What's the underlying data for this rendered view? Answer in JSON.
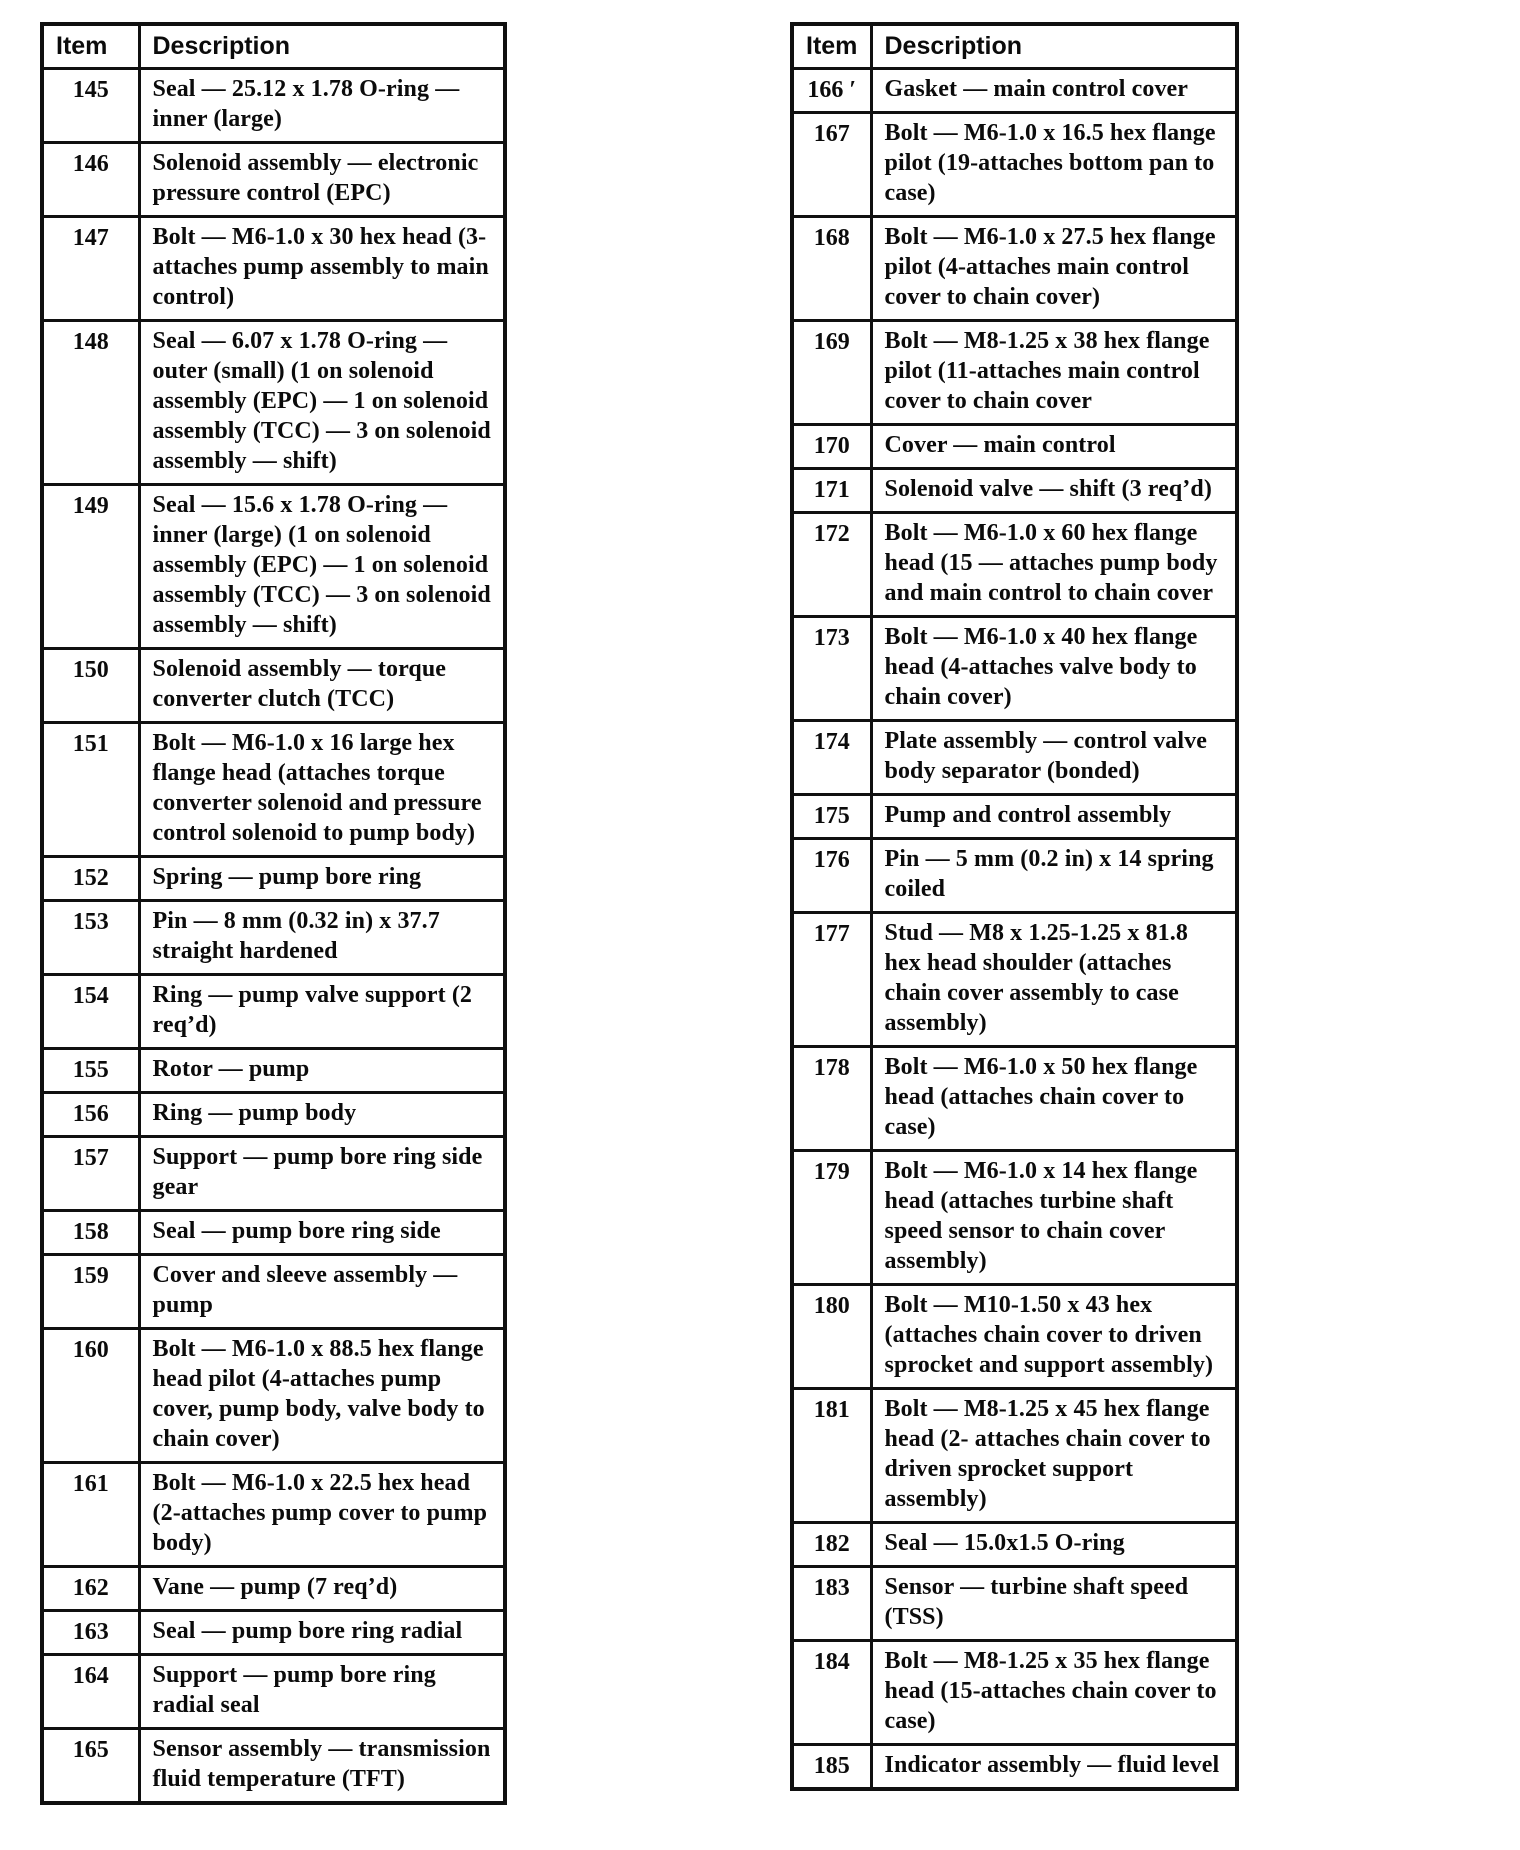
{
  "page": {
    "background": "#ffffff",
    "ink": "#0d0d0d"
  },
  "left_table": {
    "headers": {
      "item": "Item",
      "description": "Description"
    },
    "rows": [
      {
        "item": "145",
        "description": "Seal — 25.12 x 1.78 O-ring — inner (large)"
      },
      {
        "item": "146",
        "description": "Solenoid assembly — electronic pressure control (EPC)"
      },
      {
        "item": "147",
        "description": "Bolt — M6-1.0 x 30 hex head (3-attaches pump assembly to main control)"
      },
      {
        "item": "148",
        "description": "Seal — 6.07 x 1.78 O-ring — outer (small) (1 on solenoid assembly (EPC) — 1 on solenoid assembly (TCC) — 3 on solenoid assembly — shift)"
      },
      {
        "item": "149",
        "description": "Seal — 15.6 x 1.78 O-ring — inner (large) (1 on solenoid assembly (EPC) — 1 on solenoid assembly (TCC) — 3 on solenoid assembly — shift)"
      },
      {
        "item": "150",
        "description": "Solenoid assembly — torque converter clutch (TCC)"
      },
      {
        "item": "151",
        "description": "Bolt — M6-1.0 x 16 large hex flange head (attaches torque converter solenoid and pressure control solenoid to pump body)"
      },
      {
        "item": "152",
        "description": "Spring — pump bore ring"
      },
      {
        "item": "153",
        "description": "Pin — 8 mm (0.32 in) x 37.7 straight hardened"
      },
      {
        "item": "154",
        "description": "Ring — pump valve support (2 req’d)"
      },
      {
        "item": "155",
        "description": "Rotor — pump"
      },
      {
        "item": "156",
        "description": "Ring — pump body"
      },
      {
        "item": "157",
        "description": "Support — pump bore ring side gear"
      },
      {
        "item": "158",
        "description": "Seal — pump bore ring side"
      },
      {
        "item": "159",
        "description": "Cover and sleeve assembly — pump"
      },
      {
        "item": "160",
        "description": "Bolt — M6-1.0 x 88.5 hex flange head pilot (4-attaches pump cover, pump body, valve body to chain cover)"
      },
      {
        "item": "161",
        "description": "Bolt — M6-1.0 x 22.5 hex head (2-attaches pump cover to pump body)"
      },
      {
        "item": "162",
        "description": "Vane — pump (7 req’d)"
      },
      {
        "item": "163",
        "description": "Seal — pump bore ring radial"
      },
      {
        "item": "164",
        "description": "Support — pump bore ring radial seal"
      },
      {
        "item": "165",
        "description": "Sensor assembly — transmission fluid temperature (TFT)"
      }
    ]
  },
  "right_table": {
    "headers": {
      "item": "Item",
      "description": "Description"
    },
    "rows": [
      {
        "item": "166 ′",
        "description": "Gasket — main control cover"
      },
      {
        "item": "167",
        "description": "Bolt — M6-1.0 x 16.5 hex flange pilot (19-attaches bottom pan to case)"
      },
      {
        "item": "168",
        "description": "Bolt — M6-1.0 x 27.5 hex flange pilot (4-attaches main control cover to chain cover)"
      },
      {
        "item": "169",
        "description": "Bolt — M8-1.25 x 38 hex flange pilot (11-attaches main control cover to chain cover"
      },
      {
        "item": "170",
        "description": "Cover — main control"
      },
      {
        "item": "171",
        "description": "Solenoid valve — shift (3 req’d)"
      },
      {
        "item": "172",
        "description": "Bolt — M6-1.0 x 60 hex flange head (15 — attaches pump body and main control to chain cover"
      },
      {
        "item": "173",
        "description": "Bolt — M6-1.0 x 40 hex flange head (4-attaches valve body to chain cover)"
      },
      {
        "item": "174",
        "description": "Plate assembly — control valve body separator (bonded)"
      },
      {
        "item": "175",
        "description": "Pump and control assembly"
      },
      {
        "item": "176",
        "description": "Pin — 5 mm (0.2 in) x 14 spring coiled"
      },
      {
        "item": "177",
        "description": "Stud — M8 x 1.25-1.25 x 81.8 hex head shoulder (attaches chain cover assembly to case assembly)"
      },
      {
        "item": "178",
        "description": "Bolt — M6-1.0 x 50 hex flange head (attaches chain cover to case)"
      },
      {
        "item": "179",
        "description": "Bolt — M6-1.0 x 14 hex flange head (attaches turbine shaft speed sensor to chain cover assembly)"
      },
      {
        "item": "180",
        "description": "Bolt — M10-1.50 x 43 hex (attaches chain cover to driven sprocket and support assembly)"
      },
      {
        "item": "181",
        "description": "Bolt — M8-1.25 x 45 hex flange head (2- attaches chain cover to driven sprocket support assembly)"
      },
      {
        "item": "182",
        "description": "Seal — 15.0x1.5 O-ring"
      },
      {
        "item": "183",
        "description": "Sensor — turbine shaft speed (TSS)"
      },
      {
        "item": "184",
        "description": "Bolt — M8-1.25 x 35 hex flange head (15-attaches chain cover to case)"
      },
      {
        "item": "185",
        "description": "Indicator assembly — fluid level"
      }
    ]
  }
}
